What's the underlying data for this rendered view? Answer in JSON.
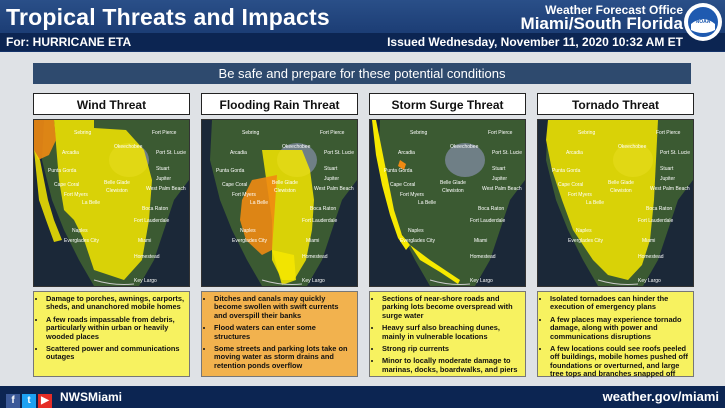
{
  "header": {
    "title": "Tropical Threats and Impacts",
    "for_label": "For: HURRICANE ETA",
    "office_line1": "Weather Forecast Office",
    "office_line2": "Miami/South Florida",
    "issued": "Issued Wednesday, November 11, 2020 10:32 AM ET",
    "logo_text": "NOAA"
  },
  "banner": "Be safe and prepare for these potential conditions",
  "panels": [
    {
      "title": "Wind Threat",
      "desc_bg": "#f7f260",
      "bullets": [
        "Damage to porches, awnings, carports, sheds, and unanchored mobile homes",
        "A few roads impassable from debris, particularly within urban or heavily wooded places",
        "Scattered power and communications outages"
      ]
    },
    {
      "title": "Flooding Rain Threat",
      "desc_bg": "#f2b24e",
      "bullets": [
        "Ditches and canals may quickly become swollen with swift currents and overspill their banks",
        "Flood waters can enter some structures",
        "Some streets and parking lots take on moving water as storm drains and retention ponds overflow"
      ]
    },
    {
      "title": "Storm Surge Threat",
      "desc_bg": "#f7f260",
      "bullets": [
        "Sections of near-shore roads and parking lots become overspread with surge water",
        "Heavy surf also breaching dunes, mainly in vulnerable locations",
        "Strong rip currents",
        "Minor to locally moderate damage to marinas, docks, boardwalks, and piers"
      ]
    },
    {
      "title": "Tornado Threat",
      "desc_bg": "#f7f260",
      "bullets": [
        "Isolated tornadoes can hinder the execution of emergency plans",
        "A few places may experience tornado damage, along with power and communications disruptions",
        "A few locations could see roofs peeled off buildings, mobile homes pushed off foundations or overturned, and large tree tops and branches snapped off"
      ]
    }
  ],
  "map_labels": [
    "Sebring",
    "Fort Pierce",
    "Arcadia",
    "Okeechobee",
    "Port St. Lucie",
    "Stuart",
    "Punta Gorda",
    "Jupiter",
    "Cape Coral",
    "Belle Glade",
    "West Palm Beach",
    "Fort Myers",
    "La Belle",
    "Clewiston",
    "Boca Raton",
    "Naples",
    "Fort Lauderdale",
    "Everglades City",
    "Miami",
    "Homestead",
    "Key Largo"
  ],
  "footer": {
    "handle": "NWSMiami",
    "site": "weather.gov/miami"
  }
}
